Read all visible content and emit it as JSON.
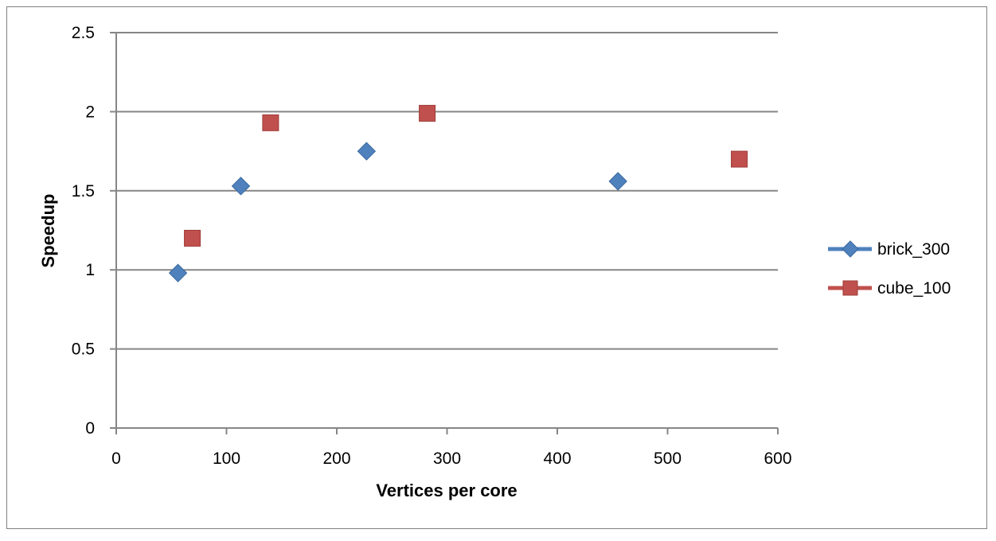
{
  "chart_data": {
    "type": "scatter",
    "title": "",
    "xlabel": "Vertices per core",
    "ylabel": "Speedup",
    "xlim": [
      0,
      600
    ],
    "ylim": [
      0,
      2.5
    ],
    "x_ticks": [
      "0",
      "100",
      "200",
      "300",
      "400",
      "500",
      "600"
    ],
    "y_ticks": [
      "0",
      "0.5",
      "1",
      "1.5",
      "2",
      "2.5"
    ],
    "grid": "horizontal",
    "legend_position": "right",
    "series": [
      {
        "name": "brick_300",
        "marker": "diamond",
        "color": "#4F81BD",
        "points": [
          {
            "x": 56,
            "y": 0.98
          },
          {
            "x": 113,
            "y": 1.53
          },
          {
            "x": 227,
            "y": 1.75
          },
          {
            "x": 455,
            "y": 1.56
          }
        ]
      },
      {
        "name": "cube_100",
        "marker": "square",
        "color": "#C0504D",
        "points": [
          {
            "x": 69,
            "y": 1.2
          },
          {
            "x": 140,
            "y": 1.93
          },
          {
            "x": 282,
            "y": 1.99
          },
          {
            "x": 565,
            "y": 1.7
          }
        ]
      }
    ]
  }
}
